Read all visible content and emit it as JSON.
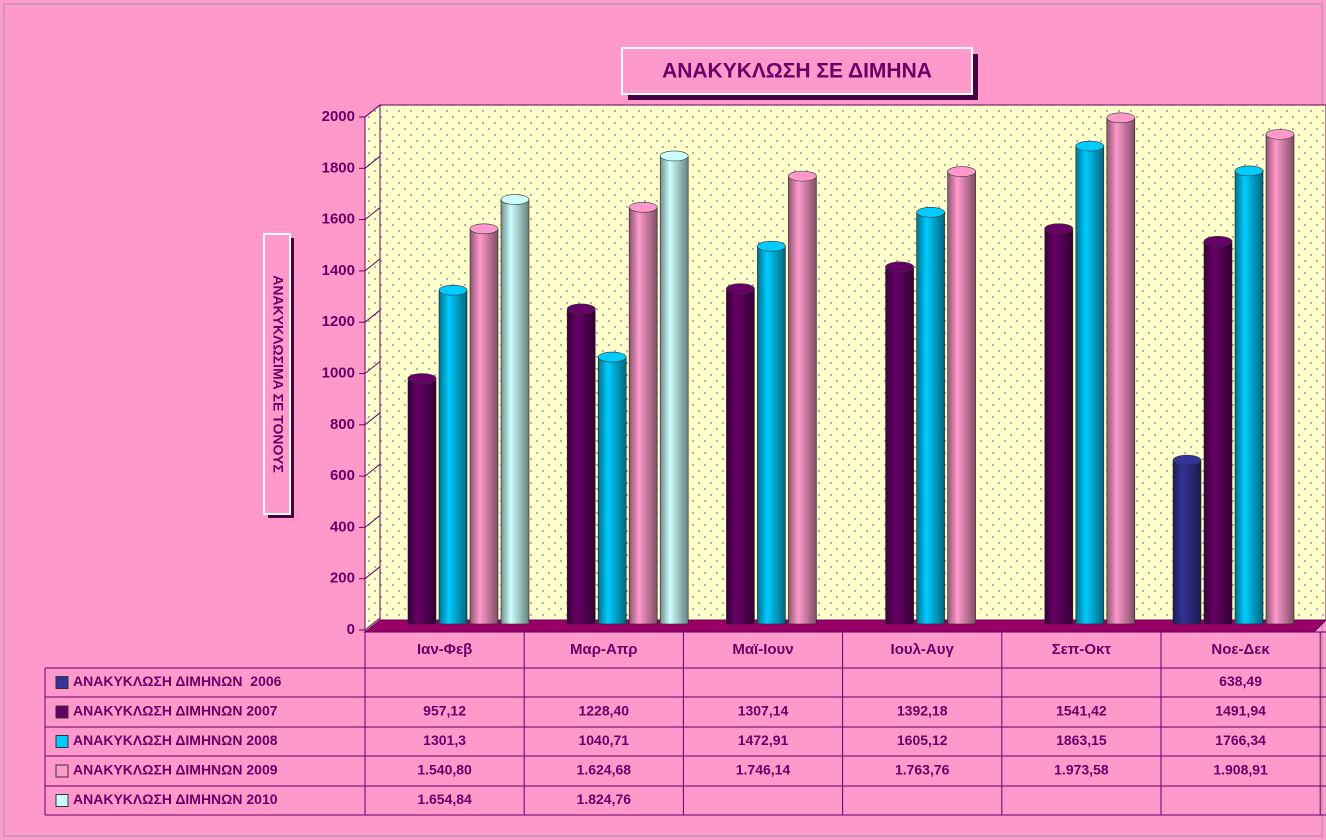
{
  "chart_data": {
    "type": "bar",
    "title": "ΑΝΑΚΥΚΛΩΣΗ ΣΕ ΔΙΜΗΝΑ",
    "y_label": "ΑΝΑΚΥΚΛΩΣΙΜΑ ΣΕ ΤΟΝΟΥΣ",
    "categories": [
      "Ιαν-Φεβ",
      "Μαρ-Απρ",
      "Μαϊ-Ιουν",
      "Ιουλ-Αυγ",
      "Σεπ-Οκτ",
      "Νοε-Δεκ"
    ],
    "series": [
      {
        "name": "ΑΝΑΚΥΚΛΩΣΗ ΔΙΜΗΝΩΝ  2006",
        "color": "#333399",
        "values": [
          null,
          null,
          null,
          null,
          null,
          638.49
        ],
        "value_labels": [
          null,
          null,
          null,
          null,
          null,
          "638,49"
        ]
      },
      {
        "name": "ΑΝΑΚΥΚΛΩΣΗ ΔΙΜΗΝΩΝ 2007",
        "color": "#660066",
        "values": [
          957.12,
          1228.4,
          1307.14,
          1392.18,
          1541.42,
          1491.94
        ],
        "value_labels": [
          "957,12",
          "1228,40",
          "1307,14",
          "1392,18",
          "1541,42",
          "1491,94"
        ]
      },
      {
        "name": "ΑΝΑΚΥΚΛΩΣΗ ΔΙΜΗΝΩΝ 2008",
        "color": "#00ccff",
        "values": [
          1301.3,
          1040.71,
          1472.91,
          1605.12,
          1863.15,
          1766.34
        ],
        "value_labels": [
          "1301,3",
          "1040,71",
          "1472,91",
          "1605,12",
          "1863,15",
          "1766,34"
        ]
      },
      {
        "name": "ΑΝΑΚΥΚΛΩΣΗ ΔΙΜΗΝΩΝ 2009",
        "color": "#ff99cc",
        "values": [
          1540.8,
          1624.68,
          1746.14,
          1763.76,
          1973.58,
          1908.91
        ],
        "value_labels": [
          "1.540,80",
          "1.624,68",
          "1.746,14",
          "1.763,76",
          "1.973,58",
          "1.908,91"
        ]
      },
      {
        "name": "ΑΝΑΚΥΚΛΩΣΗ ΔΙΜΗΝΩΝ 2010",
        "color": "#ccffff",
        "values": [
          1654.84,
          1824.76,
          null,
          null,
          null,
          null
        ],
        "value_labels": [
          "1.654,84",
          "1.824,76",
          null,
          null,
          null,
          null
        ]
      }
    ],
    "ylim": [
      0,
      2000
    ],
    "yticks": [
      0,
      200,
      400,
      600,
      800,
      1000,
      1200,
      1400,
      1600,
      1800,
      2000
    ]
  }
}
